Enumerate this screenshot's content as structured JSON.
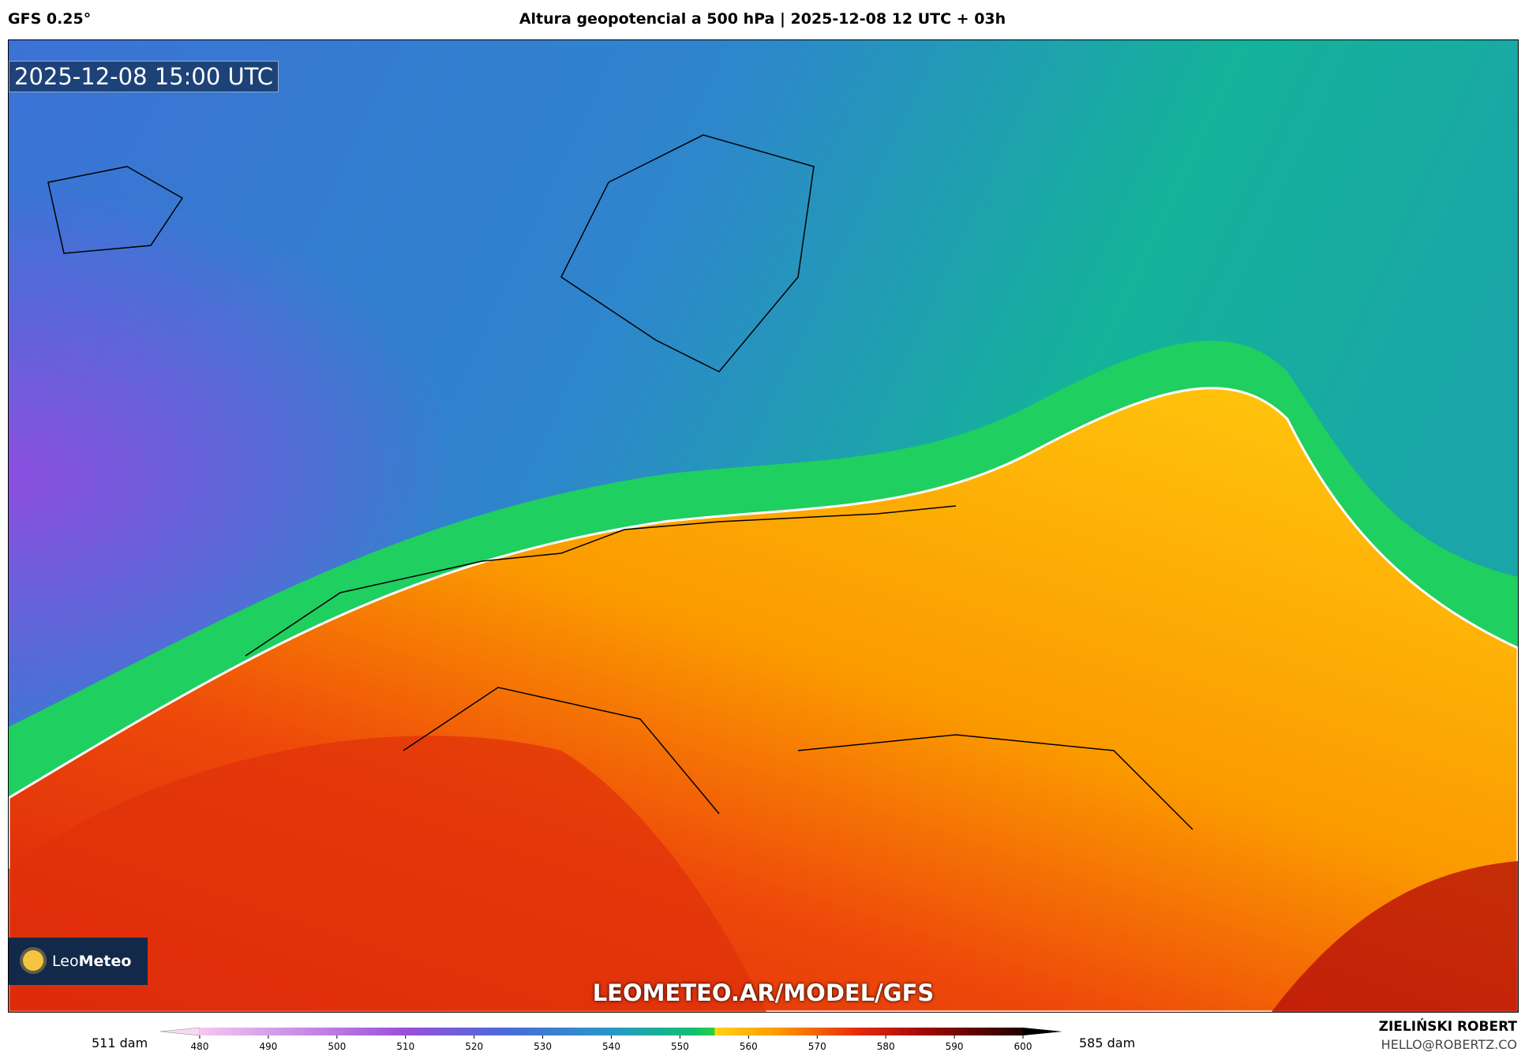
{
  "header": {
    "model": "GFS 0.25°",
    "title": "Altura geopotencial a 500 hPa | 2025-12-08 12 UTC + 03h"
  },
  "map": {
    "valid_time": "2025-12-08 15:00 UTC",
    "watermark": "LEOMETEO.AR/MODEL/GFS",
    "logo": {
      "light": "Leo",
      "bold": "Meteo"
    }
  },
  "colorbar": {
    "min_label": "511 dam",
    "max_label": "585 dam",
    "lim": [
      480,
      600
    ],
    "ticks": [
      480,
      490,
      500,
      510,
      520,
      530,
      540,
      550,
      560,
      570,
      580,
      590,
      600
    ]
  },
  "credit": {
    "name": "ZIELIŃSKI ROBERT",
    "email": "HELLO@ROBERTZ.CO"
  }
}
